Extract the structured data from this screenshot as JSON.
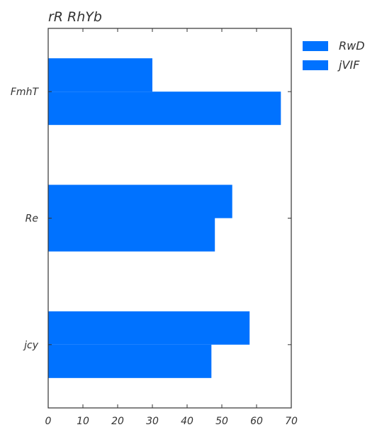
{
  "chart_data": {
    "type": "bar",
    "orientation": "horizontal",
    "title": "rR RhYb",
    "xlabel": "",
    "ylabel": "",
    "categories": [
      "FmhT",
      "Re",
      "jcy"
    ],
    "series": [
      {
        "name": "RwD",
        "values": [
          30,
          53,
          58
        ]
      },
      {
        "name": "jVIF",
        "values": [
          67,
          48,
          47
        ]
      }
    ],
    "xlim": [
      0,
      70
    ],
    "xticks": [
      0,
      10,
      20,
      30,
      40,
      50,
      60,
      70
    ],
    "grid": false,
    "legend_position": "top-right, outside plot",
    "bar_color": "#0072ff"
  }
}
